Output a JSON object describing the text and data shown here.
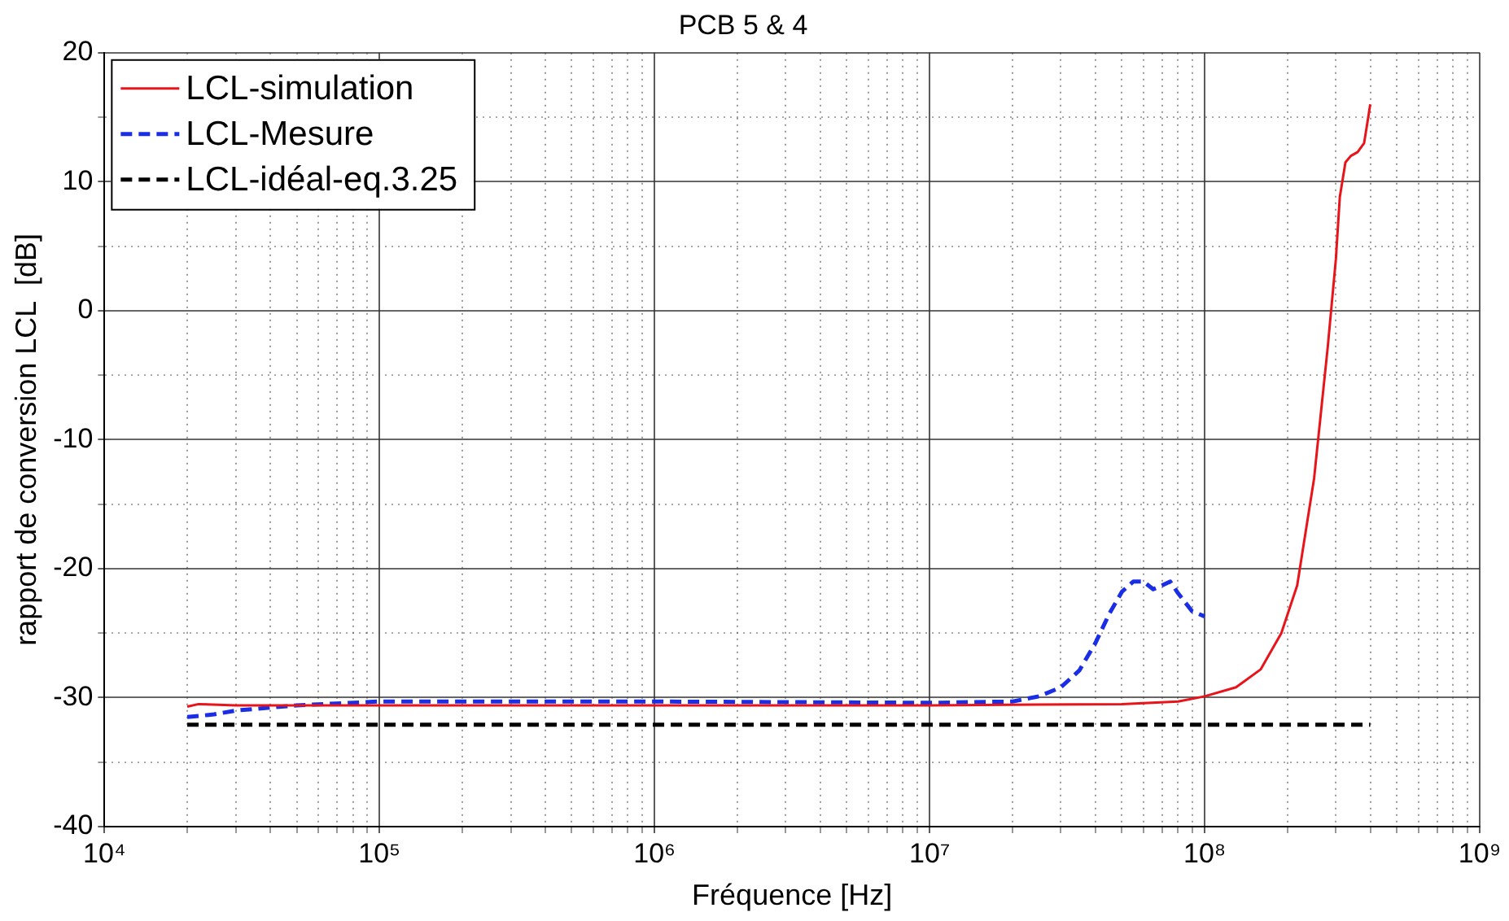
{
  "chart_data": {
    "type": "line",
    "title": "PCB 5 & 4",
    "xlabel": "Fréquence [Hz]",
    "ylabel": "rapport de conversion LCL  [dB]",
    "log": "x",
    "grid": true,
    "legend": "top left",
    "marker": "none",
    "xlim": [
      10000,
      1000000000
    ],
    "xticks": [
      {
        "value": 10000,
        "label": "10⁴"
      },
      {
        "value": 20000,
        "label": null
      },
      {
        "value": 30000,
        "label": null
      },
      {
        "value": 40000,
        "label": null
      },
      {
        "value": 50000,
        "label": null
      },
      {
        "value": 60000,
        "label": null
      },
      {
        "value": 70000,
        "label": null
      },
      {
        "value": 80000,
        "label": null
      },
      {
        "value": 90000,
        "label": null
      },
      {
        "value": 100000,
        "label": "10⁵"
      },
      {
        "value": 200000,
        "label": null
      },
      {
        "value": 300000,
        "label": null
      },
      {
        "value": 400000,
        "label": null
      },
      {
        "value": 500000,
        "label": null
      },
      {
        "value": 600000,
        "label": null
      },
      {
        "value": 700000,
        "label": null
      },
      {
        "value": 800000,
        "label": null
      },
      {
        "value": 900000,
        "label": null
      },
      {
        "value": 1000000,
        "label": "10⁶"
      },
      {
        "value": 2000000,
        "label": null
      },
      {
        "value": 3000000,
        "label": null
      },
      {
        "value": 4000000,
        "label": null
      },
      {
        "value": 5000000,
        "label": null
      },
      {
        "value": 6000000,
        "label": null
      },
      {
        "value": 7000000,
        "label": null
      },
      {
        "value": 8000000,
        "label": null
      },
      {
        "value": 9000000,
        "label": null
      },
      {
        "value": 10000000,
        "label": "10⁷"
      },
      {
        "value": 20000000,
        "label": null
      },
      {
        "value": 30000000,
        "label": null
      },
      {
        "value": 40000000,
        "label": null
      },
      {
        "value": 50000000,
        "label": null
      },
      {
        "value": 60000000,
        "label": null
      },
      {
        "value": 70000000,
        "label": null
      },
      {
        "value": 80000000,
        "label": null
      },
      {
        "value": 90000000,
        "label": null
      },
      {
        "value": 100000000,
        "label": "10⁸"
      },
      {
        "value": 200000000,
        "label": null
      },
      {
        "value": 300000000,
        "label": null
      },
      {
        "value": 400000000,
        "label": null
      },
      {
        "value": 500000000,
        "label": null
      },
      {
        "value": 600000000,
        "label": null
      },
      {
        "value": 700000000,
        "label": null
      },
      {
        "value": 800000000,
        "label": null
      },
      {
        "value": 900000000,
        "label": null
      },
      {
        "value": 1000000000,
        "label": "10⁹"
      }
    ],
    "ylim": [
      -40,
      20
    ],
    "yticks": [
      -40,
      {
        "value": -35,
        "label": null
      },
      -30,
      {
        "value": -25,
        "label": null
      },
      -20,
      {
        "value": -15,
        "label": null
      },
      -10,
      {
        "value": -5,
        "label": null
      },
      0,
      {
        "value": 5,
        "label": null
      },
      10,
      {
        "value": 15,
        "label": null
      },
      20
    ],
    "series": [
      {
        "name": "LCL-simulation",
        "color": "#e8141a",
        "line_style": "solid",
        "x": [
          20000,
          22000,
          30000,
          100000,
          1000000,
          10000000,
          50000000,
          80000000,
          100000000,
          130000000,
          160000000,
          190000000,
          217000000,
          250000000,
          280000000,
          300000000,
          310000000,
          325000000,
          340000000,
          360000000,
          380000000,
          390000000,
          400000000
        ],
        "values": [
          -30.7,
          -30.5,
          -30.6,
          -30.6,
          -30.6,
          -30.6,
          -30.5,
          -30.3,
          -29.9,
          -29.2,
          -27.8,
          -25,
          -21.3,
          -13,
          -2.9,
          4,
          8.8,
          11.5,
          12,
          12.3,
          13,
          14.5,
          16
        ]
      },
      {
        "name": "LCL-Mesure",
        "color": "#1a2ee6",
        "line_style": "dashed",
        "x": [
          20000,
          25000,
          30000,
          50000,
          100000,
          1000000,
          10000000,
          20000000,
          25000000,
          30000000,
          35000000,
          40000000,
          45000000,
          50000000,
          55000000,
          60000000,
          65000000,
          70000000,
          75000000,
          80000000,
          90000000,
          100000000
        ],
        "values": [
          -31.5,
          -31.3,
          -31,
          -30.6,
          -30.3,
          -30.3,
          -30.4,
          -30.3,
          -29.9,
          -29.2,
          -27.9,
          -25.8,
          -23.5,
          -21.8,
          -21,
          -21,
          -21.6,
          -21.3,
          -21,
          -21.9,
          -23.3,
          -23.7
        ]
      },
      {
        "name": "LCL-idéal-eq.3.25",
        "color": "#000000",
        "line_style": "dashed",
        "x": [
          20000,
          400000000
        ],
        "values": [
          -32.1,
          -32.1
        ]
      }
    ]
  }
}
